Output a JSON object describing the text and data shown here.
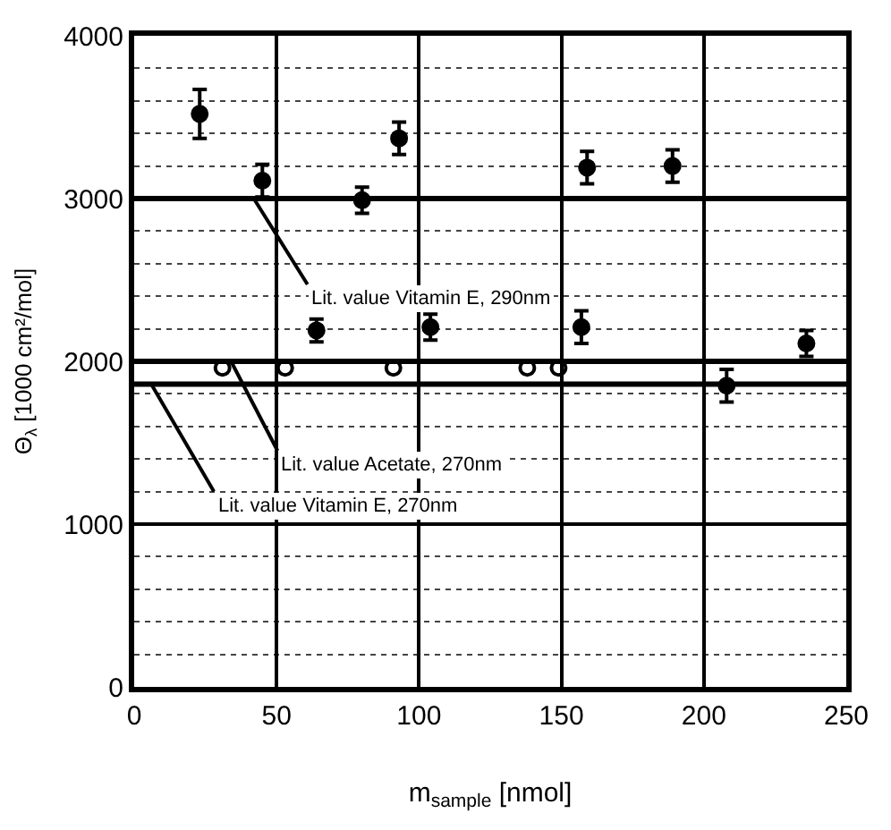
{
  "chart_data": {
    "type": "scatter",
    "xlabel": "m$_{sample}$ [nmol]",
    "ylabel": "Θ$_{λ}$ [1000 cm²/mol]",
    "xlim": [
      0,
      250
    ],
    "xticks": [
      0,
      50,
      100,
      150,
      200,
      250
    ],
    "ylim": [
      0,
      4000
    ],
    "yticks": [
      0,
      1000,
      2000,
      3000,
      4000
    ],
    "grid": true,
    "series": [
      {
        "color": "#000000",
        "x": [
          23,
          45,
          64,
          80,
          93,
          104,
          157,
          159,
          189,
          208,
          236
        ],
        "values": [
          3520,
          3110,
          2190,
          2990,
          3370,
          2210,
          2210,
          3190,
          3200,
          1850,
          2110
        ],
        "errors": [
          150,
          100,
          70,
          80,
          100,
          80,
          100,
          100,
          100,
          100,
          80
        ]
      },
      {
        "color": "#000000",
        "x": [
          31,
          53,
          91,
          138,
          149
        ],
        "values": [
          1960,
          1960,
          1960,
          1960,
          1960
        ]
      }
    ],
    "ref_lines": [
      {
        "axis": "y",
        "value": 3000,
        "color": "#000000"
      },
      {
        "axis": "y",
        "value": 2000,
        "color": "#000000"
      },
      {
        "axis": "y",
        "value": 1860,
        "color": "#000000"
      }
    ],
    "annotations": [
      {
        "text": "Lit. value Vitamin E, 290nm",
        "x": 42,
        "y": 3000
      },
      {
        "text": "Lit. value Acetate, 270nm",
        "x": 34,
        "y": 2000
      },
      {
        "text": "Lit. value Vitamin E, 270nm",
        "x": 6,
        "y": 1860
      }
    ]
  }
}
